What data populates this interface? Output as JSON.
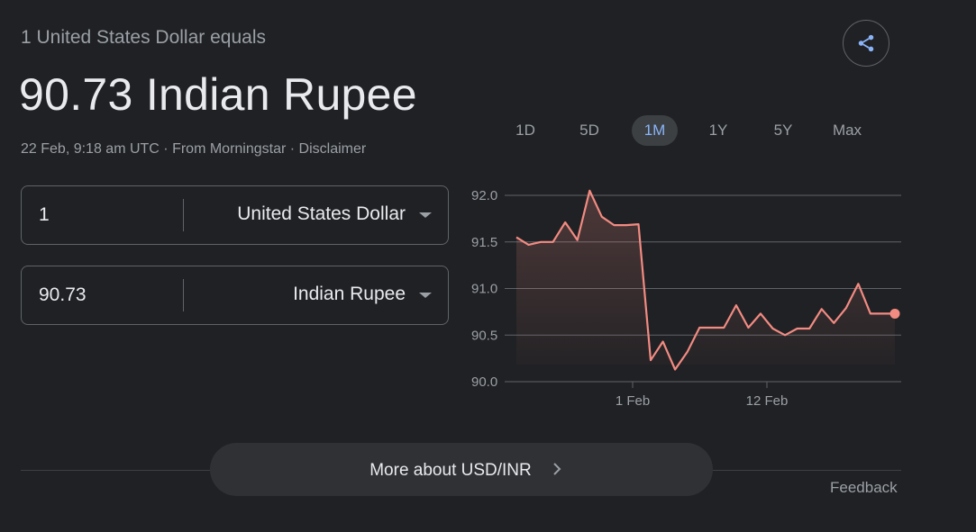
{
  "header": {
    "equals_label": "1 United States Dollar equals",
    "result_value": "90.73 Indian Rupee",
    "timestamp": "22 Feb, 9:18 am UTC",
    "separator": " · ",
    "source": "From Morningstar",
    "disclaimer": "Disclaimer"
  },
  "converter": {
    "from": {
      "amount": "1",
      "currency": "United States Dollar"
    },
    "to": {
      "amount": "90.73",
      "currency": "Indian Rupee"
    }
  },
  "share": {
    "icon": "share-icon"
  },
  "ranges": [
    {
      "label": "1D",
      "active": false
    },
    {
      "label": "5D",
      "active": false
    },
    {
      "label": "1M",
      "active": true
    },
    {
      "label": "1Y",
      "active": false
    },
    {
      "label": "5Y",
      "active": false
    },
    {
      "label": "Max",
      "active": false
    }
  ],
  "chart_data": {
    "type": "area",
    "x_ticks": [
      "1 Feb",
      "12 Feb"
    ],
    "y_ticks": [
      "92.0",
      "91.5",
      "91.0",
      "90.5",
      "90.0"
    ],
    "ylim": [
      90.0,
      92.0
    ],
    "values": [
      91.55,
      91.47,
      91.5,
      91.5,
      91.71,
      91.52,
      92.05,
      91.77,
      91.68,
      91.68,
      91.69,
      90.23,
      90.43,
      90.13,
      90.32,
      90.58,
      90.58,
      90.58,
      90.82,
      90.58,
      90.73,
      90.57,
      90.5,
      90.57,
      90.57,
      90.78,
      90.63,
      90.79,
      91.05,
      90.73,
      90.73,
      90.73
    ],
    "line_color": "#f28b82",
    "grid": true
  },
  "more_about": {
    "label": "More about USD/INR"
  },
  "feedback": {
    "label": "Feedback"
  }
}
